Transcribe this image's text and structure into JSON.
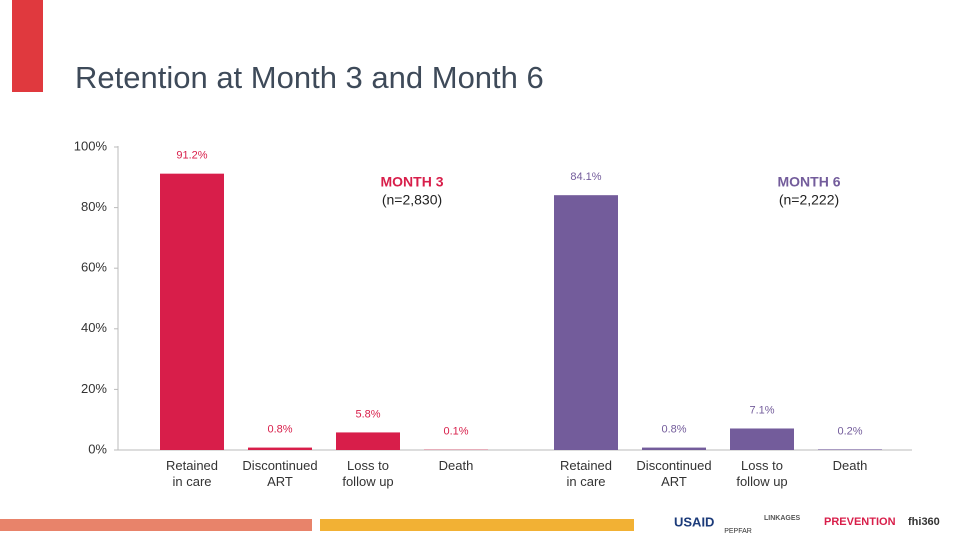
{
  "title": "Retention at Month 3 and Month 6",
  "chart_data": [
    {
      "type": "bar",
      "title": "MONTH 3",
      "subtitle": "(n=2,830)",
      "categories": [
        "Retained\nin care",
        "Discontinued\nART",
        "Loss to\nfollow up",
        "Death"
      ],
      "values": [
        91.2,
        0.8,
        5.8,
        0.1
      ],
      "value_labels": [
        "91.2%",
        "0.8%",
        "5.8%",
        "0.1%"
      ],
      "color": "#d81e4a",
      "ylim": [
        0,
        100
      ],
      "yticks": [
        {
          "value": 0,
          "label": "0%"
        },
        {
          "value": 20,
          "label": "20%"
        },
        {
          "value": 40,
          "label": "40%"
        },
        {
          "value": 60,
          "label": "60%"
        },
        {
          "value": 80,
          "label": "80%"
        },
        {
          "value": 100,
          "label": "100%"
        }
      ]
    },
    {
      "type": "bar",
      "title": "MONTH 6",
      "subtitle": "(n=2,222)",
      "categories": [
        "Retained\nin care",
        "Discontinued\nART",
        "Loss to\nfollow up",
        "Death"
      ],
      "values": [
        84.1,
        0.8,
        7.1,
        0.2
      ],
      "value_labels": [
        "84.1%",
        "0.8%",
        "7.1%",
        "0.2%"
      ],
      "color": "#735c9b",
      "ylim": [
        0,
        100
      ]
    }
  ],
  "footer": {
    "logos": [
      "USAID",
      "PEPFAR",
      "LINKAGES",
      "PREVENTION",
      "fhi360"
    ]
  }
}
